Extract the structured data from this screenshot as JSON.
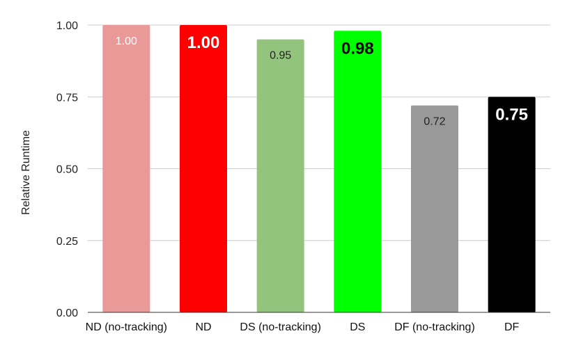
{
  "chart_data": {
    "type": "bar",
    "title": "",
    "xlabel": "",
    "ylabel": "Relative Runtime",
    "ylim": [
      0,
      1
    ],
    "yticks": [
      "0.00",
      "0.25",
      "0.50",
      "0.75",
      "1.00"
    ],
    "grid": true,
    "categories": [
      "ND (no-tracking)",
      "ND",
      "DS (no-tracking)",
      "DS",
      "DF (no-tracking)",
      "DF"
    ],
    "values": [
      1.0,
      1.0,
      0.95,
      0.98,
      0.72,
      0.75
    ],
    "data_labels": [
      "1.00",
      "1.00",
      "0.95",
      "0.98",
      "0.72",
      "0.75"
    ],
    "colors": [
      "#ea9999",
      "#ff0000",
      "#93c47d",
      "#00ff00",
      "#999999",
      "#000000"
    ],
    "label_colors": [
      "#ffffff",
      "#ffffff",
      "#222222",
      "#000000",
      "#222222",
      "#ffffff"
    ],
    "label_bold": [
      false,
      true,
      false,
      true,
      false,
      true
    ]
  }
}
